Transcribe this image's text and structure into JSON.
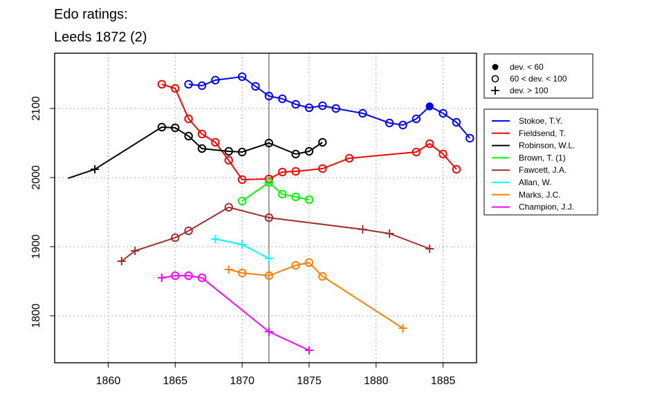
{
  "chart_data": {
    "type": "line",
    "title_lines": [
      "Edo ratings:",
      "Leeds 1872 (2)"
    ],
    "xlabel": "",
    "ylabel": "",
    "xlim": [
      1856,
      1887.5
    ],
    "ylim": [
      1732,
      2180
    ],
    "xticks": [
      1860,
      1865,
      1870,
      1875,
      1880,
      1885
    ],
    "yticks": [
      1800,
      1900,
      2000,
      2100
    ],
    "vline_x": 1872,
    "grid": "dotted",
    "marker_legend": {
      "position": "top-right",
      "entries": [
        {
          "marker": "filled-circle",
          "label": "dev. < 60"
        },
        {
          "marker": "open-circle",
          "label": "60 < dev. < 100"
        },
        {
          "marker": "plus",
          "label": "dev. > 100"
        }
      ]
    },
    "series": [
      {
        "name": "Stokoe, T.Y.",
        "color": "#0000ff",
        "points": [
          [
            1866,
            2135,
            "o"
          ],
          [
            1867,
            2133,
            "o"
          ],
          [
            1868,
            2141,
            "o"
          ],
          [
            1870,
            2146,
            "o"
          ],
          [
            1871,
            2132,
            "o"
          ],
          [
            1872,
            2118,
            "o"
          ],
          [
            1873,
            2114,
            "o"
          ],
          [
            1874,
            2106,
            "o"
          ],
          [
            1875,
            2101,
            "o"
          ],
          [
            1876,
            2104,
            "o"
          ],
          [
            1877,
            2100,
            "o"
          ],
          [
            1879,
            2093,
            "o"
          ],
          [
            1881,
            2079,
            "o"
          ],
          [
            1882,
            2076,
            "o"
          ],
          [
            1883,
            2085,
            "o"
          ],
          [
            1884,
            2103,
            "f"
          ],
          [
            1885,
            2093,
            "o"
          ],
          [
            1886,
            2080,
            "o"
          ],
          [
            1887,
            2057,
            "o"
          ]
        ]
      },
      {
        "name": "Fieldsend, T.",
        "color": "#ff0000",
        "points": [
          [
            1864,
            2135,
            "o"
          ],
          [
            1865,
            2129,
            "o"
          ],
          [
            1866,
            2085,
            "o"
          ],
          [
            1867,
            2063,
            "o"
          ],
          [
            1868,
            2051,
            "o"
          ],
          [
            1869,
            2025,
            "o"
          ],
          [
            1870,
            1997,
            "o"
          ],
          [
            1872,
            1998,
            "o"
          ],
          [
            1873,
            2008,
            "o"
          ],
          [
            1874,
            2009,
            "o"
          ],
          [
            1876,
            2013,
            "o"
          ],
          [
            1878,
            2028,
            "o"
          ],
          [
            1883,
            2037,
            "o"
          ],
          [
            1884,
            2049,
            "o"
          ],
          [
            1885,
            2034,
            "o"
          ],
          [
            1886,
            2012,
            "o"
          ]
        ]
      },
      {
        "name": "Robinson, W.L.",
        "color": "#000000",
        "points": [
          [
            1857,
            1999,
            "n"
          ],
          [
            1859,
            2012,
            "p"
          ],
          [
            1864,
            2073,
            "o"
          ],
          [
            1865,
            2072,
            "o"
          ],
          [
            1866,
            2060,
            "o"
          ],
          [
            1867,
            2042,
            "o"
          ],
          [
            1869,
            2038,
            "o"
          ],
          [
            1870,
            2037,
            "o"
          ],
          [
            1872,
            2050,
            "o"
          ],
          [
            1874,
            2034,
            "o"
          ],
          [
            1875,
            2038,
            "o"
          ],
          [
            1876,
            2051,
            "o"
          ]
        ]
      },
      {
        "name": "Brown, T. (1)",
        "color": "#00ff00",
        "points": [
          [
            1870,
            1966,
            "o"
          ],
          [
            1872,
            1993,
            "o"
          ],
          [
            1873,
            1976,
            "o"
          ],
          [
            1874,
            1972,
            "o"
          ],
          [
            1875,
            1968,
            "o"
          ]
        ]
      },
      {
        "name": "Fawcett, J.A.",
        "color": "#a52a2a",
        "points": [
          [
            1861,
            1879,
            "p"
          ],
          [
            1862,
            1894,
            "p"
          ],
          [
            1865,
            1913,
            "o"
          ],
          [
            1866,
            1923,
            "o"
          ],
          [
            1869,
            1957,
            "o"
          ],
          [
            1872,
            1942,
            "o"
          ],
          [
            1879,
            1925,
            "p"
          ],
          [
            1881,
            1919,
            "p"
          ],
          [
            1884,
            1897,
            "p"
          ]
        ]
      },
      {
        "name": "Allan, W.",
        "color": "#00ffff",
        "points": [
          [
            1868,
            1911,
            "p"
          ],
          [
            1870,
            1903,
            "p"
          ],
          [
            1872,
            1883,
            "p"
          ]
        ]
      },
      {
        "name": "Marks, J.C.",
        "color": "#ff7f00",
        "points": [
          [
            1869,
            1867,
            "p"
          ],
          [
            1870,
            1862,
            "o"
          ],
          [
            1872,
            1858,
            "o"
          ],
          [
            1874,
            1873,
            "o"
          ],
          [
            1875,
            1877,
            "o"
          ],
          [
            1876,
            1857,
            "o"
          ],
          [
            1882,
            1782,
            "p"
          ]
        ]
      },
      {
        "name": "Champion, J.J.",
        "color": "#ff00ff",
        "points": [
          [
            1864,
            1855,
            "p"
          ],
          [
            1865,
            1858,
            "o"
          ],
          [
            1866,
            1858,
            "o"
          ],
          [
            1867,
            1855,
            "o"
          ],
          [
            1872,
            1777,
            "p"
          ],
          [
            1875,
            1750,
            "p"
          ]
        ]
      }
    ]
  }
}
